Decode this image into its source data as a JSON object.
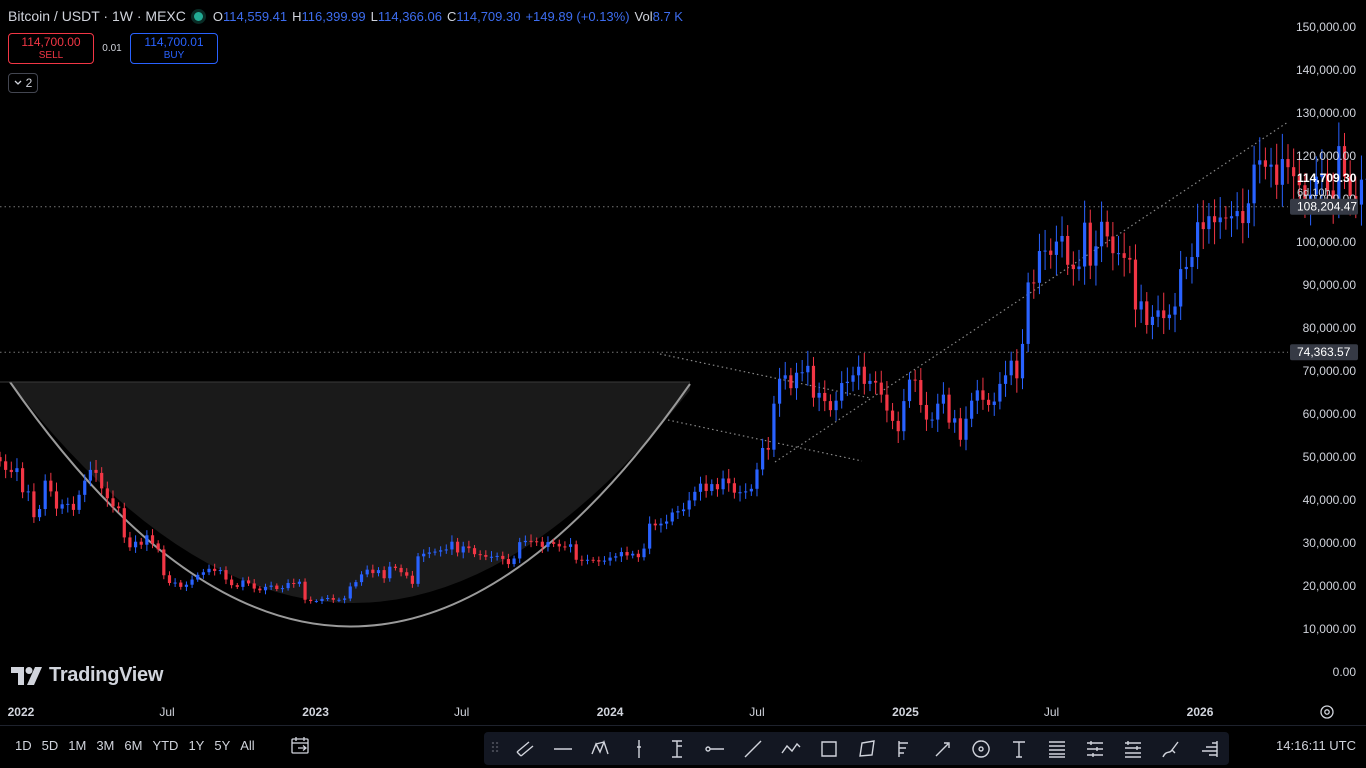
{
  "legend": {
    "symbol": "Bitcoin / USDT · 1W · MEXC",
    "o_label": "O",
    "o": "114,559.41",
    "h_label": "H",
    "h": "116,399.99",
    "l_label": "L",
    "l": "114,366.06",
    "c_label": "C",
    "c": "114,709.30",
    "change": "+149.89 (+0.13%)",
    "vol_label": "Vol",
    "vol": "8.7 K"
  },
  "trade": {
    "sell_price": "114,700.00",
    "sell_label": "SELL",
    "spread": "0.01",
    "buy_price": "114,700.01",
    "buy_label": "BUY"
  },
  "indicators_collapse": "2",
  "logo_text": "TradingView",
  "ranges": [
    "1D",
    "5D",
    "1M",
    "3M",
    "6M",
    "YTD",
    "1Y",
    "5Y",
    "All"
  ],
  "clock": "14:16:11 UTC",
  "colors": {
    "up": "#2962ff",
    "down": "#f23645",
    "bg": "#000000",
    "text": "#d1d4dc"
  },
  "tools": [
    "parallel-channel-icon",
    "horizontal-line-icon",
    "xabcd-pattern-icon",
    "vertical-cursor-icon",
    "long-position-icon",
    "horizontal-ray-icon",
    "trend-line-icon",
    "path-icon",
    "rectangle-icon",
    "polygon-icon",
    "fib-icon",
    "pen-arrow-icon",
    "circle-icon",
    "text-icon",
    "fib-retracement-icon",
    "pitchfork-icon",
    "gann-fan-icon",
    "brush-icon",
    "volume-profile-icon"
  ],
  "chart_data": {
    "type": "candlestick",
    "timeframe": "1W",
    "ylim": [
      -4000,
      155000
    ],
    "y_ticks": [
      0,
      10000,
      20000,
      30000,
      40000,
      50000,
      60000,
      70000,
      80000,
      90000,
      100000,
      110000,
      120000,
      130000,
      140000,
      150000
    ],
    "y_tick_labels": [
      "0.00",
      "10,000.00",
      "20,000.00",
      "30,000.00",
      "40,000.00",
      "50,000.00",
      "60,000.00",
      "70,000.00",
      "80,000.00",
      "90,000.00",
      "100,000.00",
      "110,000.00",
      "120,000.00",
      "130,000.00",
      "140,000.00",
      "150,000.00"
    ],
    "x_range": [
      "2021-12-06",
      "2026-04-20"
    ],
    "x_ticks": [
      {
        "date": "2022-01-01",
        "label": "2022"
      },
      {
        "date": "2022-07-01",
        "label": "Jul"
      },
      {
        "date": "2023-01-01",
        "label": "2023"
      },
      {
        "date": "2023-07-01",
        "label": "Jul"
      },
      {
        "date": "2024-01-01",
        "label": "2024"
      },
      {
        "date": "2024-07-01",
        "label": "Jul"
      },
      {
        "date": "2025-01-01",
        "label": "2025"
      },
      {
        "date": "2025-07-01",
        "label": "Jul"
      },
      {
        "date": "2026-01-01",
        "label": "2026"
      }
    ],
    "price_labels": [
      {
        "value": 114709.3,
        "text": "114,709.30",
        "sub": "6d 10h"
      },
      {
        "value": 108204.47,
        "text": "108,204.47"
      },
      {
        "value": 74363.57,
        "text": "74,363.57"
      }
    ],
    "first_date": "2021-12-06",
    "close": [
      49000,
      47000,
      46500,
      47400,
      41800,
      42000,
      36000,
      37900,
      44500,
      42000,
      38000,
      39000,
      39100,
      37700,
      41200,
      44500,
      47000,
      46300,
      42700,
      40400,
      38500,
      38100,
      31300,
      29000,
      30300,
      29600,
      31800,
      29900,
      28500,
      22500,
      20700,
      20800,
      19800,
      20300,
      21500,
      22600,
      23200,
      24000,
      23500,
      23700,
      21500,
      20200,
      19800,
      21300,
      20600,
      19400,
      19000,
      19800,
      20100,
      19300,
      19500,
      20700,
      20500,
      21000,
      16800,
      16500,
      16500,
      17000,
      17200,
      16800,
      16800,
      17100,
      19900,
      20900,
      22700,
      23800,
      23000,
      23700,
      21800,
      24500,
      24200,
      23200,
      22400,
      20500,
      26900,
      27500,
      27800,
      28000,
      28300,
      28500,
      30300,
      27800,
      29200,
      28800,
      27400,
      27200,
      26800,
      26800,
      27000,
      26300,
      25100,
      26400,
      30200,
      30500,
      30400,
      30300,
      29100,
      30200,
      29800,
      29200,
      29100,
      29700,
      26100,
      26000,
      26100,
      26000,
      25700,
      25900,
      26600,
      26900,
      27900,
      27100,
      27500,
      26700,
      28700,
      34500,
      34100,
      34500,
      35000,
      37100,
      37400,
      37800,
      39900,
      41900,
      43800,
      42100,
      43700,
      42500,
      45000,
      43900,
      41700,
      41800,
      42000,
      42600,
      47100,
      52100,
      51700,
      62400,
      68200,
      69000,
      66000,
      69600,
      69700,
      71200,
      63800,
      64900,
      63000,
      60900,
      63100,
      67200,
      67500,
      69000,
      71000,
      67000,
      67700,
      67300,
      64500,
      60800,
      58400,
      56000,
      63000,
      68000,
      67900,
      62100,
      58700,
      58700,
      62400,
      64500,
      58000,
      59000,
      54000,
      58900,
      63100,
      65500,
      63300,
      62100,
      62900,
      67000,
      69000,
      72400,
      68300,
      76300,
      90600,
      90500,
      97900,
      98000,
      97000,
      100100,
      101400,
      94700,
      93700,
      94300,
      104500,
      94500,
      99000,
      104700,
      101300,
      97400,
      97400,
      96300,
      95900,
      84300,
      86200,
      80700,
      82600,
      84100,
      82300,
      83100,
      85000,
      93700,
      94200,
      96500,
      104600,
      103000,
      106000,
      104600,
      105700,
      105500,
      106000,
      107200,
      104400,
      109000,
      118000,
      119000,
      117500,
      118000,
      113300,
      119300,
      117400,
      115300,
      113200,
      108300,
      111000,
      115200,
      115900,
      112000,
      109600,
      122300,
      115200,
      110700,
      108700,
      114500,
      114709
    ]
  }
}
